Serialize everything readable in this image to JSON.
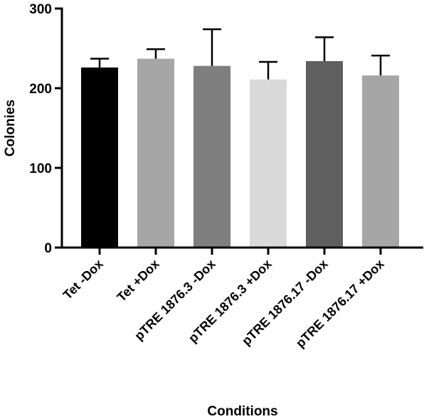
{
  "chart_data": {
    "type": "bar",
    "title": "",
    "xlabel": "Conditions",
    "ylabel": "Colonies",
    "ylim": [
      0,
      300
    ],
    "yticks": [
      0,
      100,
      200,
      300
    ],
    "grid": false,
    "categories": [
      "Tet -Dox",
      "Tet +Dox",
      "pTRE 1876.3 -Dox",
      "pTRE 1876.3 +Dox",
      "pTRE 1876.17 -Dox",
      "pTRE 1876.17 +Dox"
    ],
    "values": [
      226,
      237,
      228,
      211,
      234,
      216
    ],
    "errors": [
      11,
      12,
      46,
      22,
      30,
      25
    ],
    "colors": [
      "#000000",
      "#a6a6a6",
      "#7f7f7f",
      "#d9d9d9",
      "#5f5f5f",
      "#a6a6a6"
    ]
  }
}
